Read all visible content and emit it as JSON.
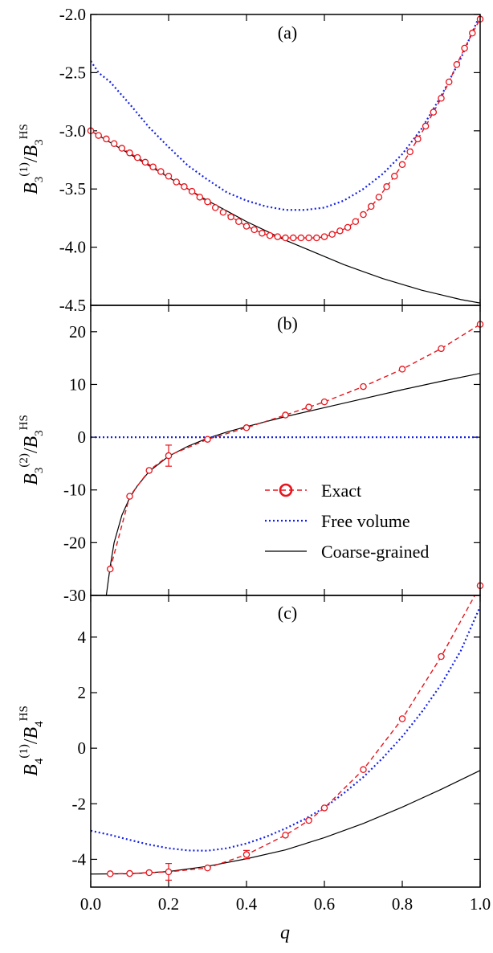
{
  "chart_data": [
    {
      "panel": "(a)",
      "type": "line",
      "ylabel": "B3(1)/B3HS",
      "xlim": [
        0.0,
        1.0
      ],
      "ylim": [
        -4.5,
        -2.0
      ],
      "yticks": [
        -2.0,
        -2.5,
        -3.0,
        -3.5,
        -4.0,
        -4.5
      ],
      "ytick_labels": [
        "-2.0",
        "-2.5",
        "-3.0",
        "-3.5",
        "-4.0",
        "-4.5"
      ],
      "series": [
        {
          "name": "Exact",
          "style": "dashed-markers",
          "color": "#e8141c",
          "x": [
            0.0,
            0.02,
            0.04,
            0.06,
            0.08,
            0.1,
            0.12,
            0.14,
            0.16,
            0.18,
            0.2,
            0.22,
            0.24,
            0.26,
            0.28,
            0.3,
            0.32,
            0.34,
            0.36,
            0.38,
            0.4,
            0.42,
            0.44,
            0.46,
            0.48,
            0.5,
            0.52,
            0.54,
            0.56,
            0.58,
            0.6,
            0.62,
            0.64,
            0.66,
            0.68,
            0.7,
            0.72,
            0.74,
            0.76,
            0.78,
            0.8,
            0.82,
            0.84,
            0.86,
            0.88,
            0.9,
            0.92,
            0.94,
            0.96,
            0.98,
            1.0
          ],
          "y": [
            -3.0,
            -3.04,
            -3.07,
            -3.11,
            -3.15,
            -3.19,
            -3.23,
            -3.27,
            -3.31,
            -3.35,
            -3.39,
            -3.44,
            -3.48,
            -3.52,
            -3.57,
            -3.61,
            -3.66,
            -3.7,
            -3.74,
            -3.78,
            -3.82,
            -3.85,
            -3.88,
            -3.9,
            -3.91,
            -3.92,
            -3.92,
            -3.92,
            -3.92,
            -3.92,
            -3.91,
            -3.89,
            -3.86,
            -3.83,
            -3.78,
            -3.72,
            -3.65,
            -3.57,
            -3.48,
            -3.39,
            -3.29,
            -3.18,
            -3.07,
            -2.96,
            -2.84,
            -2.72,
            -2.58,
            -2.43,
            -2.29,
            -2.16,
            -2.04
          ]
        },
        {
          "name": "Free volume",
          "style": "dotted",
          "color": "#1420e8",
          "x": [
            0.0,
            0.02,
            0.05,
            0.1,
            0.15,
            0.2,
            0.25,
            0.3,
            0.35,
            0.4,
            0.45,
            0.5,
            0.55,
            0.6,
            0.65,
            0.7,
            0.75,
            0.8,
            0.85,
            0.9,
            0.95,
            1.0
          ],
          "y": [
            -2.4,
            -2.5,
            -2.58,
            -2.77,
            -2.97,
            -3.14,
            -3.3,
            -3.42,
            -3.53,
            -3.6,
            -3.65,
            -3.68,
            -3.68,
            -3.66,
            -3.6,
            -3.5,
            -3.37,
            -3.2,
            -2.98,
            -2.7,
            -2.38,
            -2.0
          ]
        },
        {
          "name": "Coarse-grained",
          "style": "solid",
          "color": "#000000",
          "x": [
            0.0,
            0.05,
            0.1,
            0.15,
            0.2,
            0.25,
            0.3,
            0.35,
            0.4,
            0.45,
            0.5,
            0.55,
            0.6,
            0.65,
            0.7,
            0.75,
            0.8,
            0.85,
            0.9,
            0.95,
            1.0
          ],
          "y": [
            -3.0,
            -3.1,
            -3.2,
            -3.3,
            -3.4,
            -3.5,
            -3.6,
            -3.69,
            -3.78,
            -3.86,
            -3.94,
            -4.01,
            -4.08,
            -4.15,
            -4.21,
            -4.27,
            -4.32,
            -4.37,
            -4.41,
            -4.45,
            -4.48
          ]
        }
      ]
    },
    {
      "panel": "(b)",
      "type": "line",
      "ylabel": "B3(2)/B3HS",
      "xlim": [
        0.0,
        1.0
      ],
      "ylim": [
        -30,
        25
      ],
      "yticks": [
        20,
        10,
        0,
        -10,
        -20,
        -30
      ],
      "ytick_labels": [
        "20",
        "10",
        "0",
        "-10",
        "-20",
        "-30"
      ],
      "legend": {
        "position": "center-right",
        "labels": [
          "Exact",
          "Free volume",
          "Coarse-grained"
        ]
      },
      "series": [
        {
          "name": "Exact",
          "style": "dashed-markers",
          "color": "#e8141c",
          "x": [
            0.05,
            0.1,
            0.15,
            0.2,
            0.3,
            0.4,
            0.5,
            0.56,
            0.6,
            0.7,
            0.8,
            0.9,
            1.0
          ],
          "y": [
            -25.0,
            -11.2,
            -6.3,
            -3.5,
            -0.4,
            1.8,
            4.2,
            5.7,
            6.7,
            9.6,
            12.9,
            16.8,
            21.4
          ],
          "yerr": [
            0,
            0,
            0,
            2.0,
            0,
            0,
            0,
            0,
            0,
            0,
            0,
            0,
            0
          ]
        },
        {
          "name": "Free volume",
          "style": "dotted",
          "color": "#1420e8",
          "x": [
            0.0,
            1.0
          ],
          "y": [
            0.0,
            0.0
          ]
        },
        {
          "name": "Coarse-grained",
          "style": "solid",
          "color": "#000000",
          "x": [
            0.04,
            0.05,
            0.06,
            0.08,
            0.1,
            0.12,
            0.15,
            0.2,
            0.25,
            0.3,
            0.35,
            0.4,
            0.5,
            0.6,
            0.7,
            0.8,
            0.9,
            1.0
          ],
          "y": [
            -30.0,
            -24.5,
            -20.0,
            -14.8,
            -11.5,
            -9.2,
            -6.5,
            -3.6,
            -1.7,
            -0.2,
            1.0,
            2.0,
            3.9,
            5.6,
            7.3,
            9.0,
            10.6,
            12.1
          ]
        }
      ]
    },
    {
      "panel": "(c)",
      "type": "line",
      "xlabel": "q",
      "ylabel": "B4(1)/B4HS",
      "xlim": [
        0.0,
        1.0
      ],
      "ylim": [
        -5.0,
        5.5
      ],
      "xticks": [
        0.0,
        0.2,
        0.4,
        0.6,
        0.8,
        1.0
      ],
      "xtick_labels": [
        "0.0",
        "0.2",
        "0.4",
        "0.6",
        "0.8",
        "1.0"
      ],
      "yticks": [
        4,
        2,
        0,
        -2,
        -4
      ],
      "ytick_labels": [
        "4",
        "2",
        "0",
        "-2",
        "-4"
      ],
      "series": [
        {
          "name": "Exact",
          "style": "dashed-markers",
          "color": "#e8141c",
          "x": [
            0.05,
            0.1,
            0.15,
            0.2,
            0.3,
            0.4,
            0.5,
            0.56,
            0.6,
            0.7,
            0.8,
            0.9,
            1.0
          ],
          "y": [
            -4.52,
            -4.51,
            -4.48,
            -4.45,
            -4.31,
            -3.83,
            -3.13,
            -2.6,
            -2.15,
            -0.77,
            1.06,
            3.3,
            5.85
          ],
          "yerr": [
            0,
            0,
            0,
            0.3,
            0,
            0.15,
            0,
            0,
            0,
            0,
            0,
            0,
            0
          ]
        },
        {
          "name": "Free volume",
          "style": "dotted",
          "color": "#1420e8",
          "x": [
            0.0,
            0.05,
            0.1,
            0.15,
            0.2,
            0.25,
            0.3,
            0.35,
            0.4,
            0.45,
            0.5,
            0.55,
            0.6,
            0.65,
            0.7,
            0.75,
            0.8,
            0.85,
            0.9,
            0.95,
            1.0
          ],
          "y": [
            -2.97,
            -3.12,
            -3.3,
            -3.47,
            -3.6,
            -3.68,
            -3.69,
            -3.6,
            -3.43,
            -3.19,
            -2.89,
            -2.55,
            -2.14,
            -1.62,
            -1.04,
            -0.35,
            0.42,
            1.3,
            2.3,
            3.5,
            5.1
          ]
        },
        {
          "name": "Coarse-grained",
          "style": "solid",
          "color": "#000000",
          "x": [
            0.0,
            0.1,
            0.2,
            0.3,
            0.4,
            0.5,
            0.6,
            0.7,
            0.8,
            0.9,
            1.0
          ],
          "y": [
            -4.53,
            -4.52,
            -4.44,
            -4.25,
            -3.98,
            -3.66,
            -3.22,
            -2.71,
            -2.12,
            -1.48,
            -0.8
          ]
        }
      ]
    }
  ]
}
